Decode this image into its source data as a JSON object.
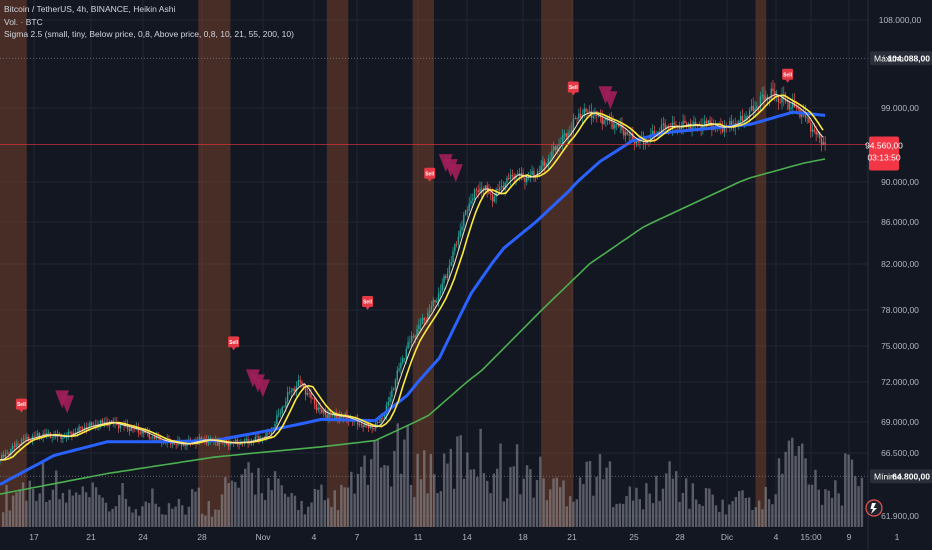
{
  "legend": {
    "line1": "Bitcoin / TetherUS, 4h, BINANCE, Heikin Ashi",
    "line2": "Vol. · BTC",
    "line3": "Sigma 2.5 (small, tiny, Below price, 0,8, Above price, 0,8, 10, 21, 55, 200, 10)"
  },
  "price_tags": {
    "max_label": "Máximo",
    "max_value": "104.088,00",
    "current_value": "94.560,00",
    "countdown": "03:13:50",
    "min_label": "Mínimo",
    "min_value": "64.800,00"
  },
  "sell_label": "Sell",
  "colors": {
    "background": "#131722",
    "grid": "#1f2433",
    "candle_up": "#26a69a",
    "candle_down": "#ef5350",
    "ema_fast": "#f7e3c2",
    "ema_21": "#ffeb3b",
    "ema_55": "#2962ff",
    "ema_200": "#4caf50",
    "session_band": "#a0522d",
    "sell_marker": "#e53946",
    "arrow_marker": "#a01e5a",
    "volume": "#9598a1",
    "current_price_line": "#f23645"
  },
  "chart_data": {
    "type": "candlestick",
    "ylim": [
      61900,
      108000
    ],
    "y_ticks": [
      {
        "value": 108000,
        "label": "108.000,00"
      },
      {
        "value": 99000,
        "label": "99.000,00"
      },
      {
        "value": 90000,
        "label": "90.000,00"
      },
      {
        "value": 86000,
        "label": "86.000,00"
      },
      {
        "value": 82000,
        "label": "82.000,00"
      },
      {
        "value": 78000,
        "label": "78.000,00"
      },
      {
        "value": 75000,
        "label": "75.000,00"
      },
      {
        "value": 72000,
        "label": "72.000,00"
      },
      {
        "value": 69000,
        "label": "69.000,00"
      },
      {
        "value": 66500,
        "label": "66.500,00"
      },
      {
        "value": 61900,
        "label": "61.900,00"
      }
    ],
    "x_ticks": [
      "17",
      "21",
      "24",
      "28",
      "Nov",
      "4",
      "7",
      "11",
      "14",
      "18",
      "21",
      "25",
      "28",
      "Dic",
      "4",
      "15:00",
      "9",
      "1"
    ],
    "price_path": [
      [
        0,
        66000
      ],
      [
        2,
        67500
      ],
      [
        4,
        68000
      ],
      [
        6,
        67800
      ],
      [
        8,
        68600
      ],
      [
        10,
        69000
      ],
      [
        11,
        68800
      ],
      [
        13,
        68300
      ],
      [
        15,
        67500
      ],
      [
        17,
        67200
      ],
      [
        19,
        67600
      ],
      [
        21,
        67300
      ],
      [
        23,
        67400
      ],
      [
        25,
        67900
      ],
      [
        26,
        69500
      ],
      [
        27,
        71200
      ],
      [
        28,
        72000
      ],
      [
        29,
        70800
      ],
      [
        30,
        69700
      ],
      [
        31,
        69500
      ],
      [
        32,
        69400
      ],
      [
        33,
        69100
      ],
      [
        34,
        68700
      ],
      [
        35,
        68600
      ],
      [
        36,
        69800
      ],
      [
        37,
        72500
      ],
      [
        38,
        75000
      ],
      [
        39,
        76500
      ],
      [
        40,
        77800
      ],
      [
        41,
        79500
      ],
      [
        42,
        82000
      ],
      [
        43,
        85500
      ],
      [
        44,
        88500
      ],
      [
        45,
        89500
      ],
      [
        46,
        88500
      ],
      [
        47,
        89800
      ],
      [
        48,
        91000
      ],
      [
        49,
        90500
      ],
      [
        50,
        91000
      ],
      [
        51,
        92500
      ],
      [
        52,
        94500
      ],
      [
        53,
        96000
      ],
      [
        54,
        98200
      ],
      [
        55,
        98500
      ],
      [
        56,
        97800
      ],
      [
        57,
        97300
      ],
      [
        58,
        96500
      ],
      [
        59,
        95200
      ],
      [
        60,
        94800
      ],
      [
        61,
        95800
      ],
      [
        62,
        96800
      ],
      [
        63,
        96700
      ],
      [
        64,
        97000
      ],
      [
        65,
        96800
      ],
      [
        66,
        97200
      ],
      [
        67,
        96600
      ],
      [
        68,
        96800
      ],
      [
        69,
        97300
      ],
      [
        70,
        98500
      ],
      [
        71,
        99800
      ],
      [
        72,
        100500
      ],
      [
        73,
        99800
      ],
      [
        74,
        99200
      ],
      [
        75,
        98200
      ],
      [
        76,
        96000
      ],
      [
        77,
        94560
      ]
    ],
    "ema_200_path": [
      [
        0,
        63500
      ],
      [
        10,
        65000
      ],
      [
        20,
        66200
      ],
      [
        30,
        67000
      ],
      [
        35,
        67500
      ],
      [
        40,
        69500
      ],
      [
        45,
        73000
      ],
      [
        50,
        77500
      ],
      [
        55,
        82000
      ],
      [
        60,
        85500
      ],
      [
        65,
        88000
      ],
      [
        70,
        90500
      ],
      [
        75,
        92300
      ],
      [
        77,
        92800
      ]
    ],
    "ema_55_path": [
      [
        0,
        64200
      ],
      [
        5,
        66300
      ],
      [
        10,
        67400
      ],
      [
        15,
        67400
      ],
      [
        20,
        67500
      ],
      [
        25,
        68300
      ],
      [
        30,
        69200
      ],
      [
        35,
        69100
      ],
      [
        38,
        71000
      ],
      [
        41,
        74000
      ],
      [
        44,
        79500
      ],
      [
        47,
        83500
      ],
      [
        50,
        86000
      ],
      [
        53,
        89000
      ],
      [
        56,
        92500
      ],
      [
        59,
        95000
      ],
      [
        62,
        96000
      ],
      [
        66,
        96500
      ],
      [
        70,
        97000
      ],
      [
        74,
        98500
      ],
      [
        77,
        98100
      ]
    ],
    "volume_profile": [
      3,
      4,
      4,
      5,
      4,
      3,
      3,
      3,
      3,
      2,
      3,
      2,
      2,
      3,
      2,
      3,
      2,
      3,
      2,
      3,
      4,
      4,
      5,
      5,
      4,
      3,
      3,
      2,
      3,
      2,
      3,
      4,
      5,
      6,
      6,
      7,
      7,
      6,
      6,
      5,
      6,
      7,
      8,
      7,
      6,
      5,
      6,
      5,
      5,
      4,
      4,
      4,
      5,
      6,
      5,
      4,
      3,
      3,
      3,
      4,
      5,
      4,
      3,
      3,
      3,
      2,
      3,
      3,
      2,
      3,
      6,
      8,
      7,
      5,
      4,
      4,
      5,
      6
    ],
    "session_bands": [
      [
        0,
        2.5
      ],
      [
        18.5,
        21.5
      ],
      [
        30.5,
        32.5
      ],
      [
        38.5,
        40.5
      ],
      [
        50.5,
        53.5
      ],
      [
        70.5,
        71.5
      ]
    ],
    "sell_markers": [
      [
        2,
        70300
      ],
      [
        21.8,
        75300
      ],
      [
        34.3,
        78700
      ],
      [
        40.1,
        91000
      ],
      [
        53.5,
        101100
      ],
      [
        73.5,
        102400
      ]
    ],
    "arrow_markers": [
      {
        "x": 5.8,
        "y": 70700,
        "count": 2
      },
      {
        "x": 23.6,
        "y": 72300,
        "count": 3
      },
      {
        "x": 41.6,
        "y": 92300,
        "count": 3
      },
      {
        "x": 56.5,
        "y": 100300,
        "count": 2
      }
    ]
  }
}
